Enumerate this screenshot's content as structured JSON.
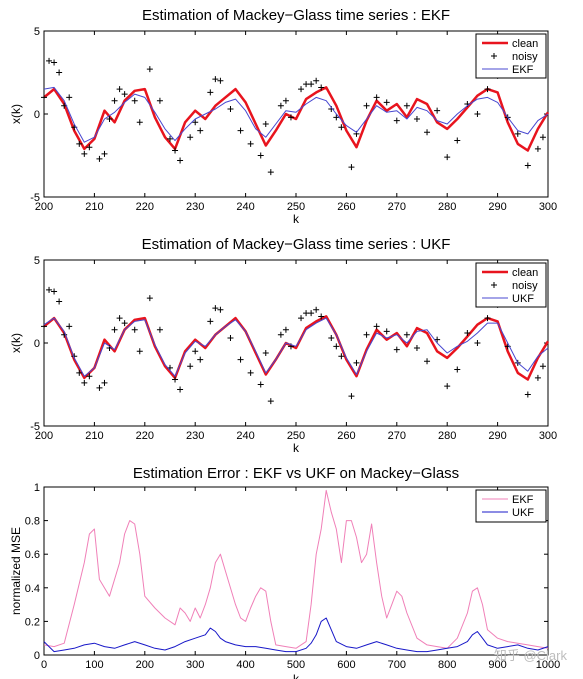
{
  "watermark": "知乎 @Clark",
  "chart_data": [
    {
      "type": "line",
      "title": "Estimation of Mackey−Glass time series : EKF",
      "xlabel": "k",
      "ylabel": "x(k)",
      "xlim": [
        200,
        300
      ],
      "ylim": [
        -5,
        5
      ],
      "xticks": [
        200,
        210,
        220,
        230,
        240,
        250,
        260,
        270,
        280,
        290,
        300
      ],
      "yticks": [
        -5,
        0,
        5
      ],
      "legend_position": "top-right",
      "series": [
        {
          "name": "clean",
          "style": "thick-line",
          "color": "#e8141e",
          "x": [
            200,
            202,
            204,
            206,
            208,
            210,
            212,
            214,
            216,
            218,
            220,
            222,
            224,
            226,
            228,
            230,
            232,
            234,
            236,
            238,
            240,
            242,
            244,
            246,
            248,
            250,
            252,
            254,
            256,
            258,
            260,
            262,
            264,
            266,
            268,
            270,
            272,
            274,
            276,
            278,
            280,
            282,
            284,
            286,
            288,
            290,
            292,
            294,
            296,
            298,
            300
          ],
          "y": [
            1.0,
            1.5,
            0.6,
            -1.0,
            -2.1,
            -1.5,
            0.2,
            -0.5,
            0.8,
            1.4,
            1.5,
            -0.2,
            -1.4,
            -2.1,
            -0.5,
            0.2,
            -0.3,
            0.5,
            1.0,
            1.5,
            0.7,
            -0.6,
            -1.9,
            -1.0,
            0.0,
            -0.3,
            0.9,
            1.3,
            1.6,
            0.5,
            -1.0,
            -2.0,
            -0.4,
            0.8,
            0.2,
            0.6,
            -0.2,
            0.9,
            0.6,
            -0.5,
            -0.9,
            -0.3,
            0.4,
            1.1,
            1.5,
            1.3,
            -0.5,
            -1.8,
            -2.2,
            -0.9,
            0.1
          ]
        },
        {
          "name": "noisy",
          "style": "plus-markers",
          "color": "#000000",
          "x": [
            200,
            201,
            202,
            203,
            204,
            205,
            206,
            207,
            208,
            209,
            211,
            212,
            213,
            214,
            215,
            216,
            218,
            219,
            221,
            223,
            225,
            226,
            227,
            229,
            230,
            231,
            233,
            234,
            235,
            237,
            239,
            241,
            243,
            244,
            245,
            247,
            248,
            249,
            251,
            252,
            253,
            254,
            255,
            257,
            258,
            259,
            261,
            262,
            264,
            266,
            268,
            270,
            272,
            274,
            276,
            278,
            280,
            282,
            284,
            286,
            288,
            290,
            292,
            294,
            296,
            298,
            299
          ],
          "y": [
            1.0,
            3.2,
            3.1,
            2.5,
            0.5,
            1.0,
            -0.8,
            -1.8,
            -2.4,
            -2.0,
            -2.7,
            -2.4,
            -0.3,
            0.8,
            1.5,
            1.2,
            0.8,
            -0.5,
            2.7,
            0.8,
            -1.5,
            -2.2,
            -2.8,
            -1.4,
            -0.5,
            -1.0,
            1.3,
            2.1,
            2.0,
            0.3,
            -1.0,
            -1.8,
            -2.5,
            -0.6,
            -3.5,
            0.5,
            0.8,
            -0.2,
            1.5,
            1.8,
            1.8,
            2.0,
            1.6,
            0.3,
            -0.2,
            -0.8,
            -3.2,
            -1.2,
            0.5,
            1.0,
            0.7,
            -0.4,
            0.5,
            -0.3,
            -1.1,
            0.2,
            -2.6,
            -1.6,
            0.6,
            0.0,
            1.5,
            2.3,
            -0.2,
            -1.2,
            -3.1,
            -2.1,
            -1.4
          ]
        },
        {
          "name": "EKF",
          "style": "thin-line",
          "color": "#4848d0",
          "x": [
            200,
            202,
            204,
            206,
            208,
            210,
            212,
            214,
            216,
            218,
            220,
            222,
            224,
            226,
            228,
            230,
            232,
            234,
            236,
            238,
            240,
            242,
            244,
            246,
            248,
            250,
            252,
            254,
            256,
            258,
            260,
            262,
            264,
            266,
            268,
            270,
            272,
            274,
            276,
            278,
            280,
            282,
            284,
            286,
            288,
            290,
            292,
            294,
            296,
            298,
            300
          ],
          "y": [
            1.5,
            1.6,
            0.8,
            -0.6,
            -1.7,
            -1.4,
            -0.3,
            0.1,
            0.7,
            1.2,
            1.0,
            0.1,
            -0.9,
            -1.6,
            -0.9,
            -0.3,
            0.0,
            0.3,
            0.7,
            0.9,
            0.2,
            -0.9,
            -1.4,
            -0.6,
            0.2,
            0.1,
            0.6,
            1.0,
            0.8,
            0.0,
            -0.7,
            -1.1,
            -0.3,
            0.5,
            0.1,
            0.2,
            -0.3,
            0.4,
            0.2,
            -0.4,
            -0.6,
            0.0,
            0.5,
            0.9,
            1.0,
            0.7,
            -0.2,
            -1.0,
            -1.2,
            -0.4,
            0.0
          ]
        }
      ]
    },
    {
      "type": "line",
      "title": "Estimation of Mackey−Glass time series : UKF",
      "xlabel": "k",
      "ylabel": "x(k)",
      "xlim": [
        200,
        300
      ],
      "ylim": [
        -5,
        5
      ],
      "xticks": [
        200,
        210,
        220,
        230,
        240,
        250,
        260,
        270,
        280,
        290,
        300
      ],
      "yticks": [
        -5,
        0,
        5
      ],
      "legend_position": "top-right",
      "series": [
        {
          "name": "clean",
          "style": "thick-line",
          "color": "#e8141e",
          "x": [
            200,
            202,
            204,
            206,
            208,
            210,
            212,
            214,
            216,
            218,
            220,
            222,
            224,
            226,
            228,
            230,
            232,
            234,
            236,
            238,
            240,
            242,
            244,
            246,
            248,
            250,
            252,
            254,
            256,
            258,
            260,
            262,
            264,
            266,
            268,
            270,
            272,
            274,
            276,
            278,
            280,
            282,
            284,
            286,
            288,
            290,
            292,
            294,
            296,
            298,
            300
          ],
          "y": [
            1.0,
            1.5,
            0.6,
            -1.0,
            -2.1,
            -1.5,
            0.2,
            -0.5,
            0.8,
            1.4,
            1.5,
            -0.2,
            -1.4,
            -2.1,
            -0.5,
            0.2,
            -0.3,
            0.5,
            1.0,
            1.5,
            0.7,
            -0.6,
            -1.9,
            -1.0,
            0.0,
            -0.3,
            0.9,
            1.3,
            1.6,
            0.5,
            -1.0,
            -2.0,
            -0.4,
            0.8,
            0.2,
            0.6,
            -0.2,
            0.9,
            0.6,
            -0.5,
            -0.9,
            -0.3,
            0.4,
            1.1,
            1.5,
            1.3,
            -0.5,
            -1.8,
            -2.2,
            -0.9,
            0.1
          ]
        },
        {
          "name": "noisy",
          "style": "plus-markers",
          "color": "#000000",
          "x": [
            200,
            201,
            202,
            203,
            204,
            205,
            206,
            207,
            208,
            209,
            211,
            212,
            213,
            214,
            215,
            216,
            218,
            219,
            221,
            223,
            225,
            226,
            227,
            229,
            230,
            231,
            233,
            234,
            235,
            237,
            239,
            241,
            243,
            244,
            245,
            247,
            248,
            249,
            251,
            252,
            253,
            254,
            255,
            257,
            258,
            259,
            261,
            262,
            264,
            266,
            268,
            270,
            272,
            274,
            276,
            278,
            280,
            282,
            284,
            286,
            288,
            290,
            292,
            294,
            296,
            298,
            299
          ],
          "y": [
            1.0,
            3.2,
            3.1,
            2.5,
            0.5,
            1.0,
            -0.8,
            -1.8,
            -2.4,
            -2.0,
            -2.7,
            -2.4,
            -0.3,
            0.8,
            1.5,
            1.2,
            0.8,
            -0.5,
            2.7,
            0.8,
            -1.5,
            -2.2,
            -2.8,
            -1.4,
            -0.5,
            -1.0,
            1.3,
            2.1,
            2.0,
            0.3,
            -1.0,
            -1.8,
            -2.5,
            -0.6,
            -3.5,
            0.5,
            0.8,
            -0.2,
            1.5,
            1.8,
            1.8,
            2.0,
            1.6,
            0.3,
            -0.2,
            -0.8,
            -3.2,
            -1.2,
            0.5,
            1.0,
            0.7,
            -0.4,
            0.5,
            -0.3,
            -1.1,
            0.2,
            -2.6,
            -1.6,
            0.6,
            0.0,
            1.5,
            2.3,
            -0.2,
            -1.2,
            -3.1,
            -2.1,
            -1.4
          ]
        },
        {
          "name": "UKF",
          "style": "thin-line",
          "color": "#4848d0",
          "x": [
            200,
            202,
            204,
            206,
            208,
            210,
            212,
            214,
            216,
            218,
            220,
            222,
            224,
            226,
            228,
            230,
            232,
            234,
            236,
            238,
            240,
            242,
            244,
            246,
            248,
            250,
            252,
            254,
            256,
            258,
            260,
            262,
            264,
            266,
            268,
            270,
            272,
            274,
            276,
            278,
            280,
            282,
            284,
            286,
            288,
            290,
            292,
            294,
            296,
            298,
            300
          ],
          "y": [
            1.1,
            1.5,
            0.7,
            -0.9,
            -2.0,
            -1.5,
            0.0,
            -0.4,
            0.8,
            1.3,
            1.4,
            -0.1,
            -1.3,
            -2.0,
            -0.6,
            0.1,
            -0.2,
            0.5,
            1.0,
            1.4,
            0.7,
            -0.5,
            -1.8,
            -1.0,
            0.0,
            -0.2,
            0.8,
            1.2,
            1.5,
            0.5,
            -0.9,
            -1.9,
            -0.5,
            0.6,
            0.3,
            0.5,
            0.0,
            0.7,
            0.8,
            0.0,
            -0.6,
            -0.2,
            0.1,
            0.6,
            1.2,
            1.2,
            0.0,
            -1.2,
            -1.7,
            -0.8,
            -0.3
          ]
        }
      ]
    },
    {
      "type": "line",
      "title": "Estimation Error : EKF vs UKF on Mackey−Glass",
      "xlabel": "k",
      "ylabel": "normalized MSE",
      "xlim": [
        0,
        1000
      ],
      "ylim": [
        0,
        1
      ],
      "xticks": [
        0,
        100,
        200,
        300,
        400,
        500,
        600,
        700,
        800,
        900,
        1000
      ],
      "yticks": [
        0,
        0.2,
        0.4,
        0.6,
        0.8,
        1
      ],
      "legend_position": "top-right",
      "series": [
        {
          "name": "EKF",
          "style": "thin-line",
          "color": "#f080b8",
          "x": [
            0,
            20,
            40,
            60,
            80,
            90,
            100,
            110,
            130,
            150,
            160,
            170,
            180,
            190,
            200,
            220,
            240,
            260,
            270,
            280,
            290,
            300,
            310,
            320,
            330,
            340,
            350,
            360,
            380,
            390,
            400,
            410,
            420,
            430,
            440,
            450,
            460,
            480,
            500,
            520,
            530,
            540,
            550,
            560,
            570,
            580,
            590,
            600,
            610,
            620,
            630,
            640,
            650,
            660,
            670,
            680,
            690,
            700,
            710,
            720,
            740,
            760,
            780,
            800,
            820,
            840,
            850,
            860,
            870,
            880,
            900,
            920,
            940,
            960,
            980,
            1000
          ],
          "y": [
            0.06,
            0.05,
            0.07,
            0.3,
            0.55,
            0.72,
            0.75,
            0.45,
            0.35,
            0.55,
            0.72,
            0.8,
            0.78,
            0.6,
            0.35,
            0.28,
            0.22,
            0.18,
            0.28,
            0.25,
            0.2,
            0.28,
            0.22,
            0.3,
            0.4,
            0.55,
            0.6,
            0.5,
            0.3,
            0.22,
            0.2,
            0.28,
            0.35,
            0.4,
            0.38,
            0.2,
            0.06,
            0.05,
            0.04,
            0.08,
            0.3,
            0.6,
            0.75,
            0.98,
            0.85,
            0.75,
            0.55,
            0.8,
            0.8,
            0.7,
            0.55,
            0.6,
            0.78,
            0.55,
            0.35,
            0.22,
            0.3,
            0.38,
            0.35,
            0.25,
            0.1,
            0.06,
            0.05,
            0.04,
            0.1,
            0.25,
            0.38,
            0.4,
            0.3,
            0.15,
            0.1,
            0.08,
            0.07,
            0.06,
            0.05,
            0.04
          ]
        },
        {
          "name": "UKF",
          "style": "thin-line",
          "color": "#1818c8",
          "x": [
            0,
            10,
            20,
            40,
            60,
            80,
            100,
            120,
            140,
            160,
            180,
            200,
            220,
            240,
            260,
            280,
            300,
            320,
            330,
            340,
            350,
            360,
            380,
            400,
            420,
            440,
            460,
            480,
            500,
            520,
            530,
            540,
            550,
            560,
            570,
            580,
            600,
            620,
            640,
            660,
            680,
            700,
            720,
            740,
            760,
            780,
            800,
            820,
            840,
            850,
            860,
            870,
            880,
            900,
            920,
            940,
            960,
            980,
            1000
          ],
          "y": [
            0.08,
            0.05,
            0.02,
            0.03,
            0.04,
            0.06,
            0.07,
            0.05,
            0.04,
            0.06,
            0.08,
            0.06,
            0.04,
            0.03,
            0.05,
            0.08,
            0.1,
            0.12,
            0.16,
            0.14,
            0.1,
            0.08,
            0.06,
            0.05,
            0.05,
            0.04,
            0.03,
            0.02,
            0.02,
            0.04,
            0.07,
            0.12,
            0.2,
            0.22,
            0.15,
            0.08,
            0.05,
            0.04,
            0.06,
            0.08,
            0.06,
            0.04,
            0.03,
            0.02,
            0.02,
            0.03,
            0.04,
            0.05,
            0.08,
            0.12,
            0.14,
            0.1,
            0.06,
            0.04,
            0.05,
            0.06,
            0.04,
            0.03,
            0.05
          ]
        }
      ]
    }
  ]
}
